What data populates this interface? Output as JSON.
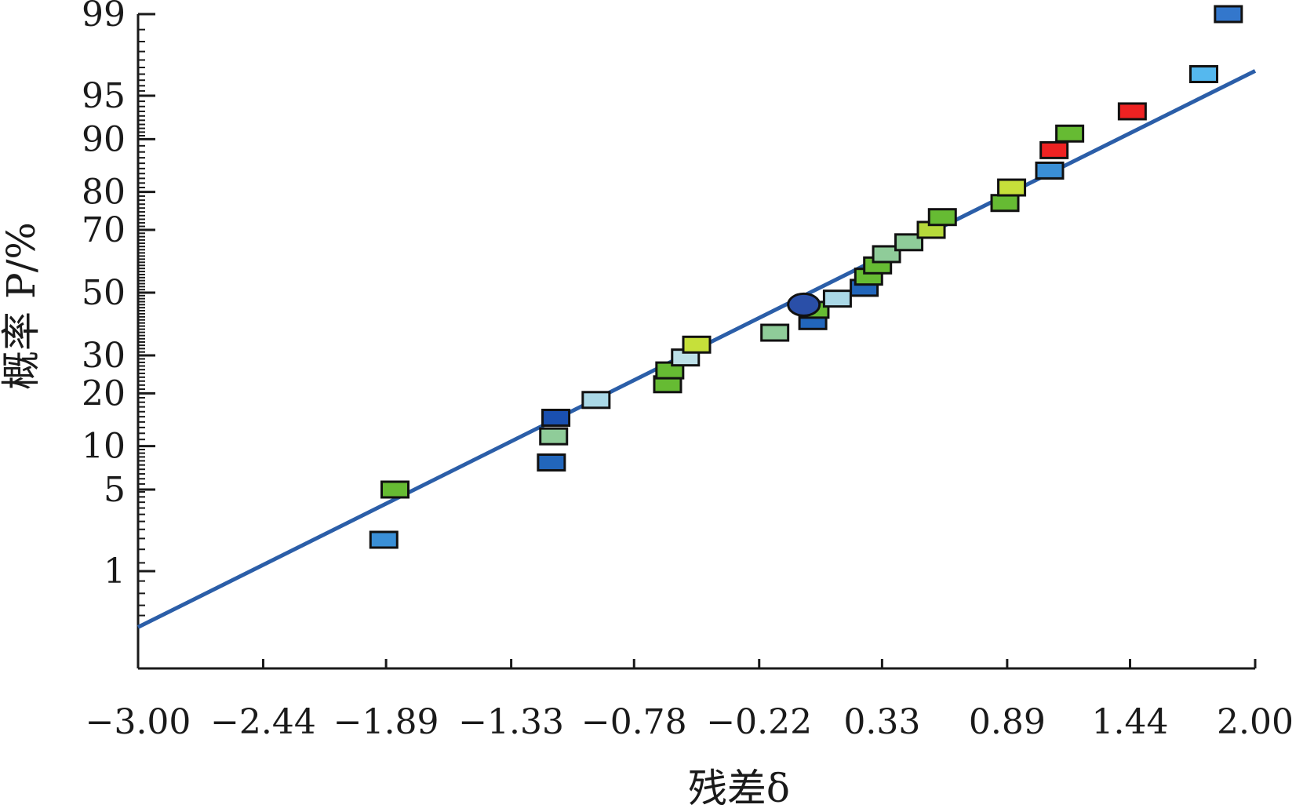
{
  "chart_data": {
    "type": "scatter",
    "title": "",
    "xlabel": "残差δ",
    "ylabel": "概率 P/%",
    "xlim": [
      -3.0,
      2.0
    ],
    "x_ticks": [
      "−3.00",
      "−2.44",
      "−1.89",
      "−1.33",
      "−0.78",
      "−0.22",
      "0.33",
      "0.89",
      "1.44",
      "2.00"
    ],
    "x_tick_values": [
      -3.0,
      -2.44,
      -1.89,
      -1.33,
      -0.78,
      -0.22,
      0.33,
      0.89,
      1.44,
      2.0
    ],
    "y_scale": "normal-probability",
    "y_ticks": [
      "1",
      "5",
      "10",
      "20",
      "30",
      "50",
      "70",
      "80",
      "90",
      "95",
      "99"
    ],
    "y_tick_values": [
      1,
      5,
      10,
      20,
      30,
      50,
      70,
      80,
      90,
      95,
      99
    ],
    "fit_line": [
      {
        "x": -3.0,
        "p": 0.26
      },
      {
        "x": 2.0,
        "p": 96.8
      }
    ],
    "points": [
      {
        "x": -1.9,
        "p": 1.95,
        "color": "#3a8fd6"
      },
      {
        "x": -1.85,
        "p": 5.0,
        "color": "#66bb33"
      },
      {
        "x": -1.15,
        "p": 7.8,
        "color": "#2266bb"
      },
      {
        "x": -1.14,
        "p": 11.5,
        "color": "#8fcc99"
      },
      {
        "x": -1.13,
        "p": 14.8,
        "color": "#1a50b0"
      },
      {
        "x": -0.95,
        "p": 18.5,
        "color": "#aad8e6"
      },
      {
        "x": -0.63,
        "p": 22.2,
        "color": "#66bb33"
      },
      {
        "x": -0.62,
        "p": 25.8,
        "color": "#66bb33"
      },
      {
        "x": -0.55,
        "p": 29.4,
        "color": "#bde0e8"
      },
      {
        "x": -0.5,
        "p": 33.2,
        "color": "#c6e03a"
      },
      {
        "x": -0.15,
        "p": 36.9,
        "color": "#8fcc99"
      },
      {
        "x": 0.02,
        "p": 40.6,
        "color": "#2266bb"
      },
      {
        "x": 0.03,
        "p": 44.3,
        "color": "#66bb33"
      },
      {
        "x": 0.13,
        "p": 48.0,
        "color": "#aad8e6"
      },
      {
        "x": 0.25,
        "p": 51.6,
        "color": "#2266bb"
      },
      {
        "x": 0.27,
        "p": 55.3,
        "color": "#66bb33"
      },
      {
        "x": 0.31,
        "p": 59.0,
        "color": "#66bb33"
      },
      {
        "x": 0.35,
        "p": 62.6,
        "color": "#8fcc99"
      },
      {
        "x": 0.45,
        "p": 66.3,
        "color": "#8fcc99"
      },
      {
        "x": 0.55,
        "p": 70.0,
        "color": "#b6d93b"
      },
      {
        "x": 0.6,
        "p": 73.6,
        "color": "#66bb33"
      },
      {
        "x": 0.88,
        "p": 77.3,
        "color": "#66bb33"
      },
      {
        "x": 0.91,
        "p": 81.0,
        "color": "#c6e03a"
      },
      {
        "x": 1.08,
        "p": 84.6,
        "color": "#3a8fd6"
      },
      {
        "x": 1.1,
        "p": 88.3,
        "color": "#ee2222"
      },
      {
        "x": 1.17,
        "p": 90.8,
        "color": "#66bb33"
      },
      {
        "x": 1.45,
        "p": 93.5,
        "color": "#ee2222"
      },
      {
        "x": 1.77,
        "p": 96.6,
        "color": "#55b8ee"
      },
      {
        "x": 1.88,
        "p": 99.0,
        "color": "#3377cc"
      }
    ],
    "mean_marker": {
      "x": -0.02,
      "p": 46.0,
      "color": "#2a4fa8"
    },
    "grid": false,
    "legend": "none"
  }
}
